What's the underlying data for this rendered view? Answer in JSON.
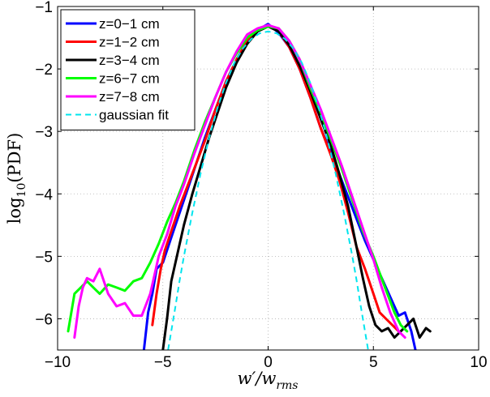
{
  "chart_data": {
    "type": "line",
    "title": "",
    "xlabel": "w′/w",
    "xlabel_sub": "rms",
    "ylabel": "log",
    "ylabel_sub": "10",
    "ylabel_suffix": "(PDF)",
    "xlim": [
      -10,
      10
    ],
    "ylim": [
      -6.5,
      -1
    ],
    "xticks": [
      -10,
      -5,
      0,
      5,
      10
    ],
    "yticks": [
      -6,
      -5,
      -4,
      -3,
      -2,
      -1
    ],
    "xtick_labels": [
      "−10",
      "−5",
      "0",
      "5",
      "10"
    ],
    "ytick_labels": [
      "−6",
      "−5",
      "−4",
      "−3",
      "−2",
      "−1"
    ],
    "grid": true,
    "legend_position": "top-left",
    "series": [
      {
        "name": "z=0−1 cm",
        "color": "#0000ff",
        "style": "solid",
        "x": [
          -5.9,
          -5.7,
          -5.5,
          -5.3,
          -5.0,
          -4.6,
          -4.2,
          -3.8,
          -3.4,
          -3.0,
          -2.5,
          -2.0,
          -1.5,
          -1.0,
          -0.5,
          0.0,
          0.5,
          1.0,
          1.5,
          2.0,
          2.5,
          3.0,
          3.4,
          3.8,
          4.2,
          4.6,
          5.0,
          5.4,
          5.8,
          6.2,
          6.5,
          6.8,
          7.0
        ],
        "y": [
          -6.5,
          -5.9,
          -5.6,
          -5.2,
          -5.1,
          -4.7,
          -4.3,
          -3.9,
          -3.5,
          -3.1,
          -2.65,
          -2.2,
          -1.85,
          -1.55,
          -1.38,
          -1.28,
          -1.42,
          -1.65,
          -2.0,
          -2.45,
          -2.95,
          -3.35,
          -3.7,
          -4.05,
          -4.4,
          -4.75,
          -5.05,
          -5.35,
          -5.65,
          -5.95,
          -5.9,
          -6.2,
          -6.5
        ]
      },
      {
        "name": "z=1−2 cm",
        "color": "#ff0000",
        "style": "solid",
        "x": [
          -5.5,
          -5.3,
          -5.1,
          -4.9,
          -4.6,
          -4.2,
          -3.8,
          -3.4,
          -3.0,
          -2.5,
          -2.0,
          -1.5,
          -1.0,
          -0.5,
          0.0,
          0.5,
          1.0,
          1.5,
          2.0,
          2.5,
          3.0,
          3.4,
          3.8,
          4.2,
          4.6,
          5.0,
          5.3,
          5.6,
          5.9,
          6.2
        ],
        "y": [
          -6.1,
          -5.6,
          -5.2,
          -4.9,
          -4.6,
          -4.2,
          -3.85,
          -3.5,
          -3.15,
          -2.65,
          -2.2,
          -1.85,
          -1.55,
          -1.38,
          -1.3,
          -1.4,
          -1.65,
          -2.0,
          -2.45,
          -2.95,
          -3.4,
          -3.8,
          -4.3,
          -4.85,
          -5.2,
          -5.6,
          -5.9,
          -6.0,
          -6.1,
          -6.2
        ]
      },
      {
        "name": "z=3−4 cm",
        "color": "#000000",
        "style": "solid",
        "x": [
          -5.0,
          -4.8,
          -4.6,
          -4.3,
          -4.0,
          -3.6,
          -3.2,
          -2.8,
          -2.4,
          -2.0,
          -1.5,
          -1.0,
          -0.5,
          0.0,
          0.5,
          1.0,
          1.5,
          2.0,
          2.5,
          3.0,
          3.4,
          3.8,
          4.2,
          4.5,
          4.8,
          5.1,
          5.4,
          5.7,
          6.0,
          6.3,
          6.6,
          6.9,
          7.2,
          7.5,
          7.7
        ],
        "y": [
          -6.5,
          -6.0,
          -5.4,
          -4.95,
          -4.5,
          -4.0,
          -3.55,
          -3.1,
          -2.7,
          -2.3,
          -1.9,
          -1.6,
          -1.4,
          -1.32,
          -1.4,
          -1.62,
          -1.95,
          -2.35,
          -2.8,
          -3.25,
          -3.7,
          -4.2,
          -4.85,
          -5.35,
          -5.8,
          -6.1,
          -6.2,
          -6.15,
          -6.3,
          -6.2,
          -6.1,
          -6.0,
          -6.3,
          -6.15,
          -6.2
        ]
      },
      {
        "name": "z=6−7 cm",
        "color": "#00ff00",
        "style": "solid",
        "x": [
          -9.5,
          -9.2,
          -8.9,
          -8.6,
          -8.3,
          -8.0,
          -7.6,
          -7.2,
          -6.8,
          -6.4,
          -6.0,
          -5.6,
          -5.2,
          -4.8,
          -4.4,
          -4.0,
          -3.5,
          -3.0,
          -2.5,
          -2.0,
          -1.5,
          -1.0,
          -0.5,
          0.0,
          0.5,
          1.0,
          1.5,
          2.0,
          2.5,
          3.0,
          3.5,
          4.0,
          4.5,
          5.0,
          5.5,
          6.0,
          6.3,
          6.6
        ],
        "y": [
          -6.2,
          -5.6,
          -5.5,
          -5.4,
          -5.5,
          -5.6,
          -5.45,
          -5.5,
          -5.55,
          -5.4,
          -5.35,
          -5.1,
          -4.8,
          -4.45,
          -4.15,
          -3.8,
          -3.3,
          -2.85,
          -2.45,
          -2.05,
          -1.75,
          -1.5,
          -1.38,
          -1.32,
          -1.35,
          -1.55,
          -1.85,
          -2.3,
          -2.7,
          -3.15,
          -3.6,
          -4.1,
          -4.6,
          -5.0,
          -5.45,
          -5.9,
          -6.1,
          -6.2
        ]
      },
      {
        "name": "z=7−8 cm",
        "color": "#ff00ff",
        "style": "solid",
        "x": [
          -9.2,
          -9.0,
          -8.8,
          -8.6,
          -8.3,
          -8.0,
          -7.6,
          -7.2,
          -6.8,
          -6.4,
          -6.0,
          -5.6,
          -5.2,
          -4.8,
          -4.4,
          -4.0,
          -3.5,
          -3.0,
          -2.5,
          -2.0,
          -1.5,
          -1.0,
          -0.5,
          0.0,
          0.5,
          1.0,
          1.5,
          2.0,
          2.5,
          3.0,
          3.5,
          4.0,
          4.5,
          5.0,
          5.4,
          5.8,
          6.2,
          6.5
        ],
        "y": [
          -6.3,
          -5.8,
          -5.5,
          -5.35,
          -5.4,
          -5.2,
          -5.6,
          -5.8,
          -5.75,
          -5.95,
          -5.95,
          -5.6,
          -5.0,
          -4.65,
          -4.2,
          -3.85,
          -3.35,
          -2.9,
          -2.45,
          -2.05,
          -1.72,
          -1.45,
          -1.35,
          -1.3,
          -1.35,
          -1.55,
          -1.85,
          -2.25,
          -2.65,
          -3.1,
          -3.55,
          -4.05,
          -4.55,
          -5.05,
          -5.5,
          -5.9,
          -6.2,
          -6.3
        ]
      },
      {
        "name": "gaussian fit",
        "color": "#00e5ee",
        "style": "dashed",
        "x": [
          -4.75,
          -4.6,
          -4.4,
          -4.2,
          -4.0,
          -3.6,
          -3.2,
          -2.8,
          -2.4,
          -2.0,
          -1.6,
          -1.2,
          -0.8,
          -0.4,
          0.0,
          0.4,
          0.8,
          1.2,
          1.6,
          2.0,
          2.4,
          2.8,
          3.2,
          3.6,
          4.0,
          4.2,
          4.4,
          4.6,
          4.75
        ],
        "y": [
          -6.5,
          -6.2,
          -5.8,
          -5.38,
          -5.0,
          -4.3,
          -3.66,
          -3.1,
          -2.62,
          -2.22,
          -1.9,
          -1.67,
          -1.52,
          -1.43,
          -1.4,
          -1.43,
          -1.52,
          -1.67,
          -1.9,
          -2.22,
          -2.62,
          -3.1,
          -3.66,
          -4.3,
          -5.0,
          -5.38,
          -5.8,
          -6.2,
          -6.5
        ]
      }
    ]
  }
}
